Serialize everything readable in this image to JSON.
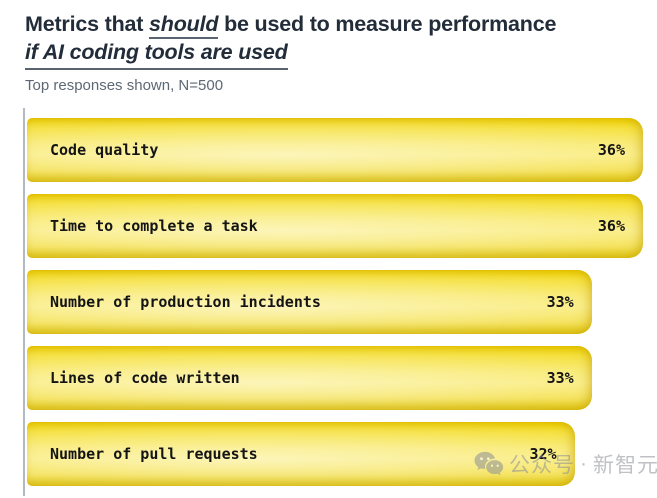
{
  "header": {
    "title_line1_pre": "Metrics that ",
    "title_line1_emph": "should",
    "title_line1_post": " be used to measure performance",
    "title_line2": "if AI coding tools are used",
    "subtitle": "Top responses shown, N=500"
  },
  "chart_data": {
    "type": "bar",
    "orientation": "horizontal",
    "title": "Metrics that should be used to measure performance if AI coding tools are used",
    "subtitle": "Top responses shown, N=500",
    "categories": [
      "Code quality",
      "Time to complete a task",
      "Number of production incidents",
      "Lines of code written",
      "Number of pull requests"
    ],
    "values": [
      36,
      36,
      33,
      33,
      32
    ],
    "value_labels": [
      "36%",
      "36%",
      "33%",
      "33%",
      "32%"
    ],
    "xlim": [
      0,
      36
    ],
    "grid": false,
    "legend": false,
    "bar_color": "#F7E34A",
    "bar_gradient_top": "#EECF01",
    "bar_gradient_mid": "#F9EA72",
    "bar_gradient_bottom": "#E2CA0E",
    "axis_line_color": "#B3B9C0",
    "label_color": "#141414"
  },
  "watermark": {
    "icon": "wechat-icon",
    "account_label": "公众号",
    "separator": "·",
    "brand": "新智元",
    "color": "#8d9094"
  }
}
